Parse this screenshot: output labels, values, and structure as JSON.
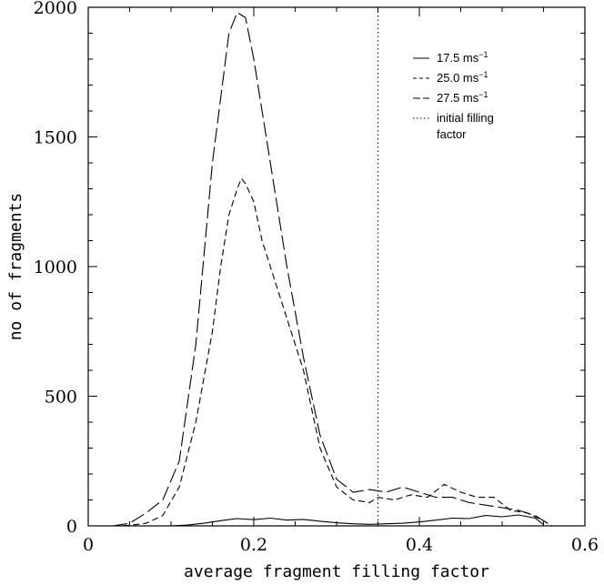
{
  "chart_data": {
    "type": "line",
    "xlabel": "average fragment filling factor",
    "ylabel": "no of fragments",
    "xlim": [
      0,
      0.6
    ],
    "ylim": [
      0,
      2000
    ],
    "x_ticks": [
      0,
      0.2,
      0.4,
      0.6
    ],
    "x_tick_labels": [
      "0",
      "0.2",
      "0.4",
      "0.6"
    ],
    "y_ticks": [
      0,
      500,
      1000,
      1500,
      2000
    ],
    "y_tick_labels": [
      "0",
      "500",
      "1000",
      "1500",
      "2000"
    ],
    "grid": false,
    "legend_position": "top-right",
    "legend": [
      {
        "label_main": "17.5 ms",
        "label_sup": "−1",
        "style": "solid"
      },
      {
        "label_main": "25.0 ms",
        "label_sup": "−1",
        "style": "short-dash"
      },
      {
        "label_main": "27.5 ms",
        "label_sup": "−1",
        "style": "long-dash"
      },
      {
        "label_main": "initial filling",
        "label_line2": "factor",
        "style": "dotted"
      }
    ],
    "series": [
      {
        "name": "17.5 ms−1",
        "style": "solid",
        "points": [
          [
            0.1,
            0
          ],
          [
            0.12,
            3
          ],
          [
            0.14,
            10
          ],
          [
            0.16,
            20
          ],
          [
            0.18,
            28
          ],
          [
            0.2,
            24
          ],
          [
            0.22,
            30
          ],
          [
            0.24,
            22
          ],
          [
            0.26,
            25
          ],
          [
            0.28,
            18
          ],
          [
            0.3,
            12
          ],
          [
            0.32,
            8
          ],
          [
            0.34,
            6
          ],
          [
            0.36,
            8
          ],
          [
            0.38,
            10
          ],
          [
            0.4,
            15
          ],
          [
            0.42,
            22
          ],
          [
            0.44,
            30
          ],
          [
            0.46,
            28
          ],
          [
            0.48,
            40
          ],
          [
            0.5,
            35
          ],
          [
            0.52,
            42
          ],
          [
            0.54,
            30
          ],
          [
            0.55,
            5
          ]
        ]
      },
      {
        "name": "25.0 ms−1",
        "style": "short-dash",
        "points": [
          [
            0.03,
            0
          ],
          [
            0.05,
            2
          ],
          [
            0.07,
            10
          ],
          [
            0.09,
            40
          ],
          [
            0.11,
            150
          ],
          [
            0.13,
            400
          ],
          [
            0.15,
            750
          ],
          [
            0.16,
            1000
          ],
          [
            0.17,
            1200
          ],
          [
            0.18,
            1300
          ],
          [
            0.185,
            1340
          ],
          [
            0.19,
            1320
          ],
          [
            0.2,
            1250
          ],
          [
            0.21,
            1100
          ],
          [
            0.22,
            1000
          ],
          [
            0.24,
            800
          ],
          [
            0.26,
            600
          ],
          [
            0.28,
            300
          ],
          [
            0.3,
            150
          ],
          [
            0.32,
            100
          ],
          [
            0.34,
            90
          ],
          [
            0.35,
            110
          ],
          [
            0.37,
            100
          ],
          [
            0.39,
            120
          ],
          [
            0.41,
            110
          ],
          [
            0.43,
            160
          ],
          [
            0.45,
            130
          ],
          [
            0.47,
            110
          ],
          [
            0.49,
            110
          ],
          [
            0.51,
            60
          ],
          [
            0.53,
            50
          ],
          [
            0.55,
            20
          ],
          [
            0.56,
            0
          ]
        ]
      },
      {
        "name": "27.5 ms−1",
        "style": "long-dash",
        "points": [
          [
            0.03,
            0
          ],
          [
            0.05,
            10
          ],
          [
            0.07,
            50
          ],
          [
            0.09,
            100
          ],
          [
            0.11,
            250
          ],
          [
            0.13,
            700
          ],
          [
            0.15,
            1400
          ],
          [
            0.17,
            1900
          ],
          [
            0.18,
            1980
          ],
          [
            0.19,
            1960
          ],
          [
            0.2,
            1800
          ],
          [
            0.22,
            1400
          ],
          [
            0.24,
            1000
          ],
          [
            0.26,
            650
          ],
          [
            0.28,
            350
          ],
          [
            0.3,
            180
          ],
          [
            0.32,
            130
          ],
          [
            0.34,
            140
          ],
          [
            0.36,
            130
          ],
          [
            0.38,
            150
          ],
          [
            0.4,
            130
          ],
          [
            0.42,
            110
          ],
          [
            0.44,
            110
          ],
          [
            0.46,
            90
          ],
          [
            0.48,
            80
          ],
          [
            0.5,
            70
          ],
          [
            0.52,
            60
          ],
          [
            0.54,
            40
          ],
          [
            0.55,
            20
          ],
          [
            0.56,
            0
          ]
        ]
      },
      {
        "name": "initial filling factor",
        "style": "dotted",
        "vertical_x": 0.35
      }
    ]
  }
}
